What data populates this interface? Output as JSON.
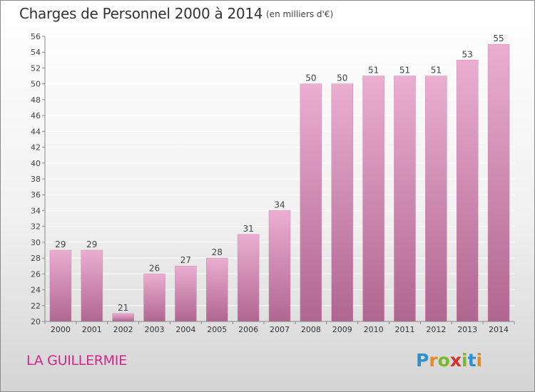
{
  "header": {
    "title": "Charges de Personnel 2000 à 2014",
    "subtitle": "(en milliers d'€)"
  },
  "commune": "LA GUILLERMIE",
  "logo": {
    "text": "Proxiti",
    "letters": [
      "P",
      "r",
      "o",
      "x",
      "i",
      "t",
      "i"
    ],
    "colors": [
      "#2f8fcf",
      "#e58a1f",
      "#7ab829",
      "#d62f2f",
      "#7ab829",
      "#2f8fcf",
      "#e58a1f"
    ]
  },
  "colors": {
    "bar_top": "#eaaed0",
    "bar_bottom": "#b0668f",
    "bar_edge": "#cf8cb2",
    "axis": "#888888",
    "grid": "#ffffff",
    "commune_text": "#d0288a"
  },
  "chart_data": {
    "type": "bar",
    "title": "Charges de Personnel 2000 à 2014",
    "subtitle": "(en milliers d'€)",
    "categories": [
      "2000",
      "2001",
      "2002",
      "2003",
      "2004",
      "2005",
      "2006",
      "2007",
      "2008",
      "2009",
      "2010",
      "2011",
      "2012",
      "2013",
      "2014"
    ],
    "values": [
      29,
      29,
      21,
      26,
      27,
      28,
      31,
      34,
      50,
      50,
      51,
      51,
      51,
      53,
      55
    ],
    "ylim": [
      20,
      56
    ],
    "yticks": [
      20,
      22,
      24,
      26,
      28,
      30,
      32,
      34,
      36,
      38,
      40,
      42,
      44,
      46,
      48,
      50,
      52,
      54,
      56
    ],
    "grid": true,
    "data_labels": true
  }
}
